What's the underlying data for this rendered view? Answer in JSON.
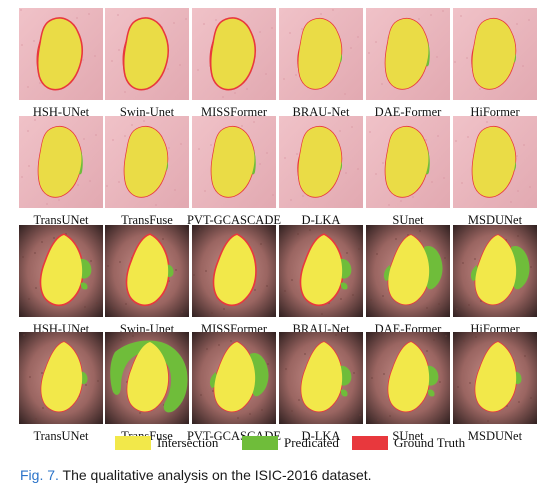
{
  "figure": {
    "rows": [
      {
        "style": "pink",
        "cells": [
          {
            "label": "HSH-UNet",
            "fp": "none",
            "fn": "heavy"
          },
          {
            "label": "Swin-Unet",
            "fp": "none",
            "fn": "heavy"
          },
          {
            "label": "MISSFormer",
            "fp": "none",
            "fn": "heavy"
          },
          {
            "label": "BRAU-Net",
            "fp": "light",
            "fn": "medium"
          },
          {
            "label": "DAE-Former",
            "fp": "medium",
            "fn": "light"
          },
          {
            "label": "HiFormer",
            "fp": "light",
            "fn": "medium"
          }
        ]
      },
      {
        "style": "pink",
        "cells": [
          {
            "label": "TransUNet",
            "fp": "medium",
            "fn": "light"
          },
          {
            "label": "TransFuse",
            "fp": "light",
            "fn": "light"
          },
          {
            "label": "PVT-GCASCADE",
            "fp": "medium",
            "fn": "light"
          },
          {
            "label": "D-LKA",
            "fp": "light",
            "fn": "medium"
          },
          {
            "label": "SUnet",
            "fp": "medium",
            "fn": "light"
          },
          {
            "label": "MSDUNet",
            "fp": "light",
            "fn": "light"
          }
        ]
      },
      {
        "style": "dark",
        "cells": [
          {
            "label": "HSH-UNet",
            "fp": "medium",
            "fn": "heavy"
          },
          {
            "label": "Swin-Unet",
            "fp": "light",
            "fn": "heavy"
          },
          {
            "label": "MISSFormer",
            "fp": "none",
            "fn": "heavy"
          },
          {
            "label": "BRAU-Net",
            "fp": "medium",
            "fn": "heavy"
          },
          {
            "label": "DAE-Former",
            "fp": "heavy",
            "fn": "medium"
          },
          {
            "label": "HiFormer",
            "fp": "heavy",
            "fn": "light"
          }
        ]
      },
      {
        "style": "dark",
        "cells": [
          {
            "label": "TransUNet",
            "fp": "light",
            "fn": "medium"
          },
          {
            "label": "TransFuse",
            "fp": "massive",
            "fn": "light"
          },
          {
            "label": "PVT-GCASCADE",
            "fp": "heavy",
            "fn": "medium"
          },
          {
            "label": "D-LKA",
            "fp": "medium",
            "fn": "light"
          },
          {
            "label": "SUnet",
            "fp": "medium",
            "fn": "medium"
          },
          {
            "label": "MSDUNet",
            "fp": "light",
            "fn": "light"
          }
        ]
      }
    ],
    "legend": [
      {
        "label": "Intersection",
        "color": "#f2e84a"
      },
      {
        "label": "Predicated",
        "color": "#6fbd3a"
      },
      {
        "label": "Ground Truth",
        "color": "#e8383d"
      }
    ],
    "caption": {
      "number": "Fig. 7.",
      "text": "The qualitative analysis on the ISIC-2016 dataset."
    }
  }
}
